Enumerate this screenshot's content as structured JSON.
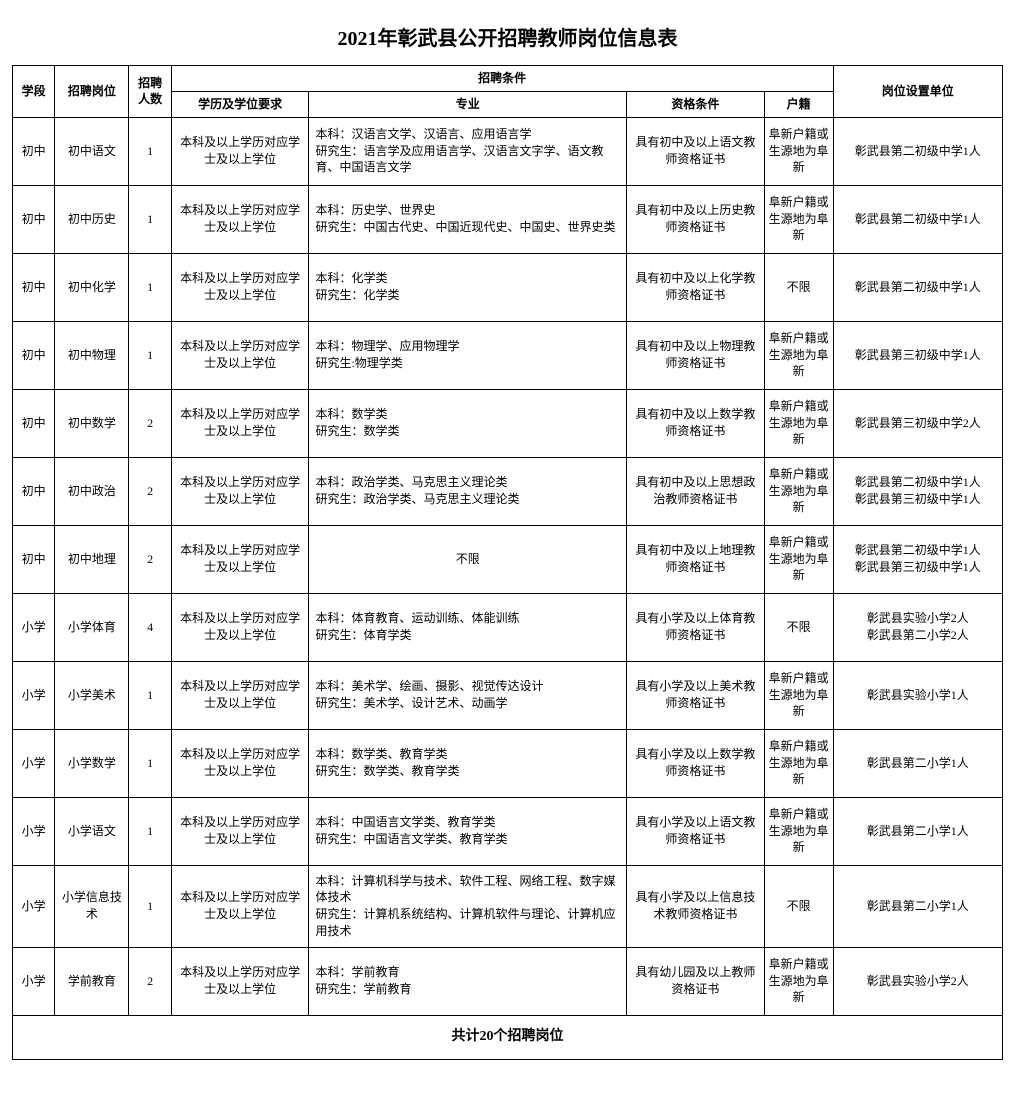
{
  "title": "2021年彰武县公开招聘教师岗位信息表",
  "headers": {
    "stage": "学段",
    "post": "招聘岗位",
    "count": "招聘人数",
    "conditions": "招聘条件",
    "degree": "学历及学位要求",
    "major": "专业",
    "qualification": "资格条件",
    "huji": "户籍",
    "unit": "岗位设置单位"
  },
  "rows": [
    {
      "stage": "初中",
      "post": "初中语文",
      "count": "1",
      "degree": "本科及以上学历对应学士及以上学位",
      "major": "本科：汉语言文学、汉语言、应用语言学\n研究生：语言学及应用语言学、汉语言文字学、语文教育、中国语言文学",
      "qualification": "具有初中及以上语文教师资格证书",
      "huji": "阜新户籍或生源地为阜新",
      "unit": "彰武县第二初级中学1人"
    },
    {
      "stage": "初中",
      "post": "初中历史",
      "count": "1",
      "degree": "本科及以上学历对应学士及以上学位",
      "major": "本科：历史学、世界史\n研究生：中国古代史、中国近现代史、中国史、世界史类",
      "qualification": "具有初中及以上历史教师资格证书",
      "huji": "阜新户籍或生源地为阜新",
      "unit": "彰武县第二初级中学1人"
    },
    {
      "stage": "初中",
      "post": "初中化学",
      "count": "1",
      "degree": "本科及以上学历对应学士及以上学位",
      "major": "本科：化学类\n研究生：化学类",
      "qualification": "具有初中及以上化学教师资格证书",
      "huji": "不限",
      "unit": "彰武县第二初级中学1人"
    },
    {
      "stage": "初中",
      "post": "初中物理",
      "count": "1",
      "degree": "本科及以上学历对应学士及以上学位",
      "major": "本科：物理学、应用物理学\n研究生:物理学类",
      "qualification": "具有初中及以上物理教师资格证书",
      "huji": "阜新户籍或生源地为阜新",
      "unit": "彰武县第三初级中学1人"
    },
    {
      "stage": "初中",
      "post": "初中数学",
      "count": "2",
      "degree": "本科及以上学历对应学士及以上学位",
      "major": "本科：数学类\n研究生：数学类",
      "qualification": "具有初中及以上数学教师资格证书",
      "huji": "阜新户籍或生源地为阜新",
      "unit": "彰武县第三初级中学2人"
    },
    {
      "stage": "初中",
      "post": "初中政治",
      "count": "2",
      "degree": "本科及以上学历对应学士及以上学位",
      "major": "本科：政治学类、马克思主义理论类\n研究生：政治学类、马克思主义理论类",
      "qualification": "具有初中及以上思想政治教师资格证书",
      "huji": "阜新户籍或生源地为阜新",
      "unit": "彰武县第二初级中学1人\n彰武县第三初级中学1人"
    },
    {
      "stage": "初中",
      "post": "初中地理",
      "count": "2",
      "degree": "本科及以上学历对应学士及以上学位",
      "major": "不限",
      "qualification": "具有初中及以上地理教师资格证书",
      "huji": "阜新户籍或生源地为阜新",
      "unit": "彰武县第二初级中学1人\n彰武县第三初级中学1人"
    },
    {
      "stage": "小学",
      "post": "小学体育",
      "count": "4",
      "degree": "本科及以上学历对应学士及以上学位",
      "major": "本科：体育教育、运动训练、体能训练\n研究生：体育学类",
      "qualification": "具有小学及以上体育教师资格证书",
      "huji": "不限",
      "unit": "彰武县实验小学2人\n彰武县第二小学2人"
    },
    {
      "stage": "小学",
      "post": "小学美术",
      "count": "1",
      "degree": "本科及以上学历对应学士及以上学位",
      "major": "本科：美术学、绘画、摄影、视觉传达设计\n研究生：美术学、设计艺术、动画学",
      "qualification": "具有小学及以上美术教师资格证书",
      "huji": "阜新户籍或生源地为阜新",
      "unit": "彰武县实验小学1人"
    },
    {
      "stage": "小学",
      "post": "小学数学",
      "count": "1",
      "degree": "本科及以上学历对应学士及以上学位",
      "major": "本科：数学类、教育学类\n研究生：数学类、教育学类",
      "qualification": "具有小学及以上数学教师资格证书",
      "huji": "阜新户籍或生源地为阜新",
      "unit": "彰武县第二小学1人"
    },
    {
      "stage": "小学",
      "post": "小学语文",
      "count": "1",
      "degree": "本科及以上学历对应学士及以上学位",
      "major": "本科：中国语言文学类、教育学类\n研究生：中国语言文学类、教育学类",
      "qualification": "具有小学及以上语文教师资格证书",
      "huji": "阜新户籍或生源地为阜新",
      "unit": "彰武县第二小学1人"
    },
    {
      "stage": "小学",
      "post": "小学信息技术",
      "count": "1",
      "degree": "本科及以上学历对应学士及以上学位",
      "major": "本科：计算机科学与技术、软件工程、网络工程、数字媒体技术\n研究生：计算机系统结构、计算机软件与理论、计算机应用技术",
      "qualification": "具有小学及以上信息技术教师资格证书",
      "huji": "不限",
      "unit": "彰武县第二小学1人",
      "tall": true
    },
    {
      "stage": "小学",
      "post": "学前教育",
      "count": "2",
      "degree": "本科及以上学历对应学士及以上学位",
      "major": "本科：学前教育\n研究生：学前教育",
      "qualification": "具有幼儿园及以上教师资格证书",
      "huji": "阜新户籍或生源地为阜新",
      "unit": "彰武县实验小学2人"
    }
  ],
  "footer": "共计20个招聘岗位"
}
